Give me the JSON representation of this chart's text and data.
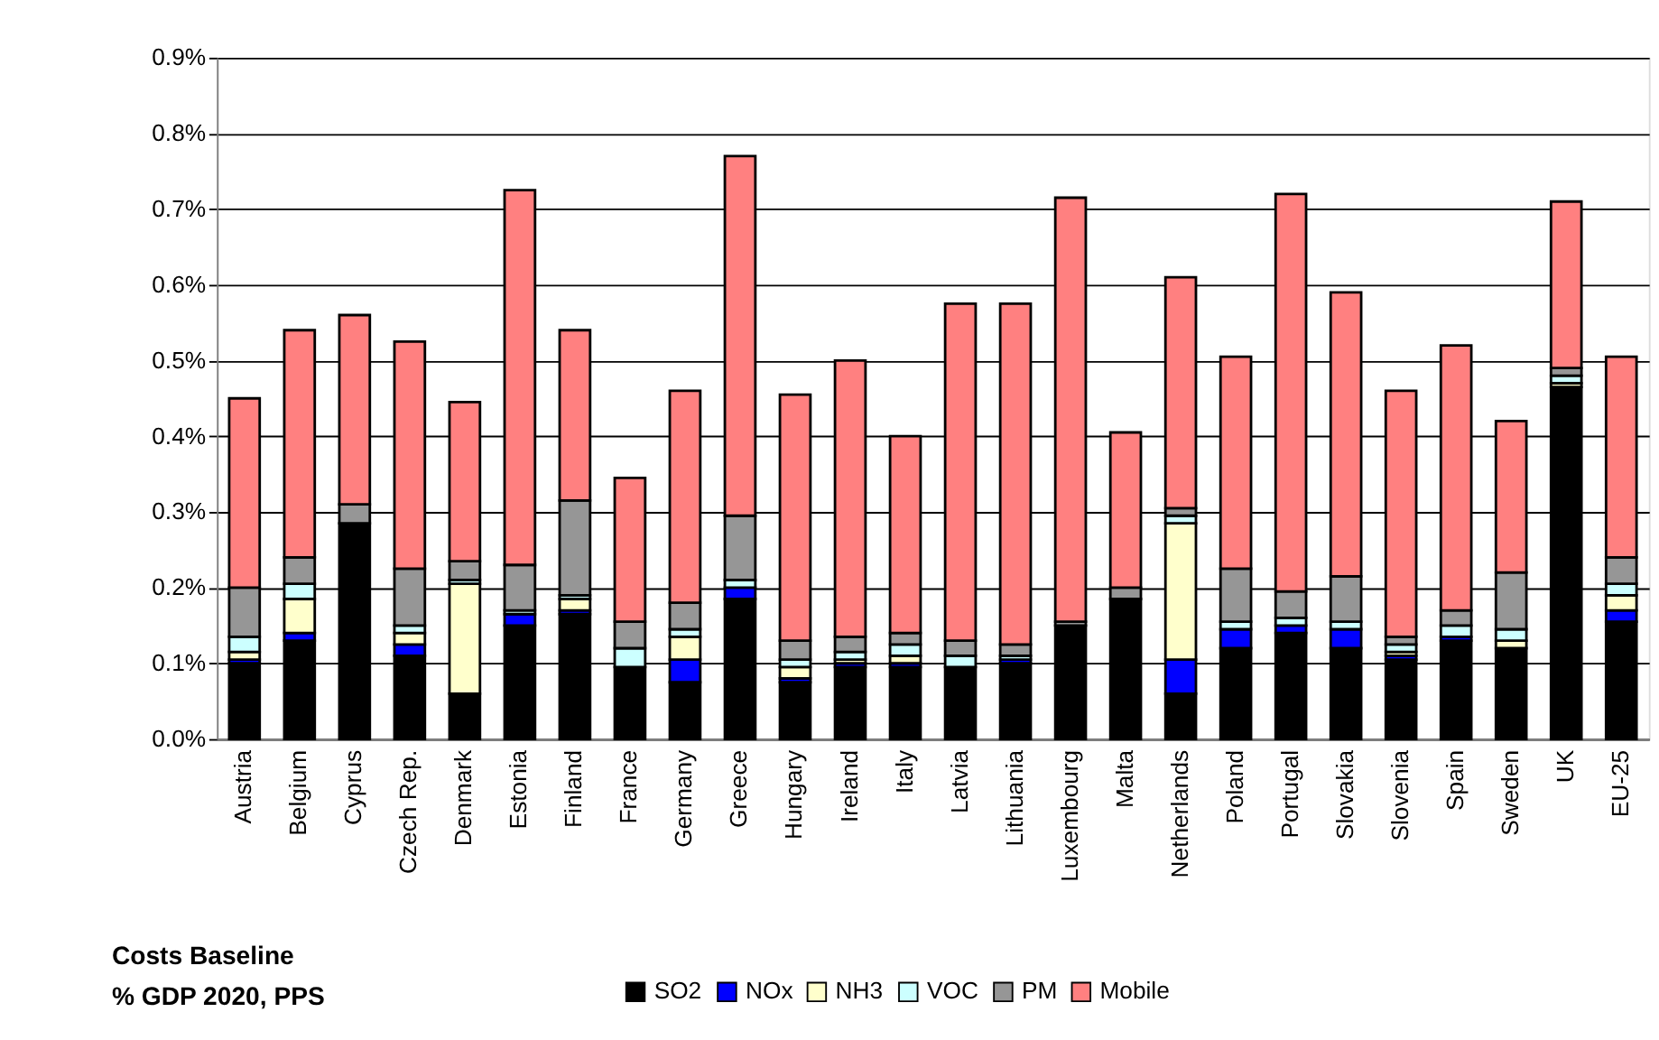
{
  "chart_data": {
    "type": "bar",
    "stacked": true,
    "categories": [
      "Austria",
      "Belgium",
      "Cyprus",
      "Czech Rep.",
      "Denmark",
      "Estonia",
      "Finland",
      "France",
      "Germany",
      "Greece",
      "Hungary",
      "Ireland",
      "Italy",
      "Latvia",
      "Lithuania",
      "Luxembourg",
      "Malta",
      "Netherlands",
      "Poland",
      "Portugal",
      "Slovakia",
      "Slovenia",
      "Spain",
      "Sweden",
      "UK",
      "EU-25"
    ],
    "series": [
      {
        "name": "SO2",
        "color": "#000000",
        "values": [
          0.1,
          0.13,
          0.285,
          0.11,
          0.06,
          0.15,
          0.165,
          0.095,
          0.075,
          0.185,
          0.075,
          0.095,
          0.095,
          0.095,
          0.1,
          0.15,
          0.185,
          0.06,
          0.12,
          0.14,
          0.12,
          0.105,
          0.13,
          0.12,
          0.465,
          0.155
        ]
      },
      {
        "name": "NOx",
        "color": "#0000ff",
        "values": [
          0.005,
          0.01,
          0,
          0.015,
          0,
          0.015,
          0.005,
          0,
          0.03,
          0.015,
          0.005,
          0.005,
          0.005,
          0,
          0.005,
          0,
          0,
          0.045,
          0.025,
          0.01,
          0.025,
          0.005,
          0.005,
          0,
          0,
          0.015
        ]
      },
      {
        "name": "NH3",
        "color": "#ffffcc",
        "values": [
          0.01,
          0.045,
          0,
          0.015,
          0.145,
          0,
          0.015,
          0,
          0.03,
          0,
          0.015,
          0.005,
          0.01,
          0,
          0,
          0,
          0,
          0.18,
          0,
          0,
          0,
          0.005,
          0,
          0.01,
          0.005,
          0.02
        ]
      },
      {
        "name": "VOC",
        "color": "#ccffff",
        "values": [
          0.02,
          0.02,
          0,
          0.01,
          0.005,
          0.005,
          0.005,
          0.025,
          0.01,
          0.01,
          0.01,
          0.01,
          0.015,
          0.015,
          0.005,
          0,
          0,
          0.01,
          0.01,
          0.01,
          0.01,
          0.01,
          0.015,
          0.015,
          0.01,
          0.015
        ]
      },
      {
        "name": "PM",
        "color": "#969696",
        "values": [
          0.065,
          0.035,
          0.025,
          0.075,
          0.025,
          0.06,
          0.125,
          0.035,
          0.035,
          0.085,
          0.025,
          0.02,
          0.015,
          0.02,
          0.015,
          0.005,
          0.015,
          0.01,
          0.07,
          0.035,
          0.06,
          0.01,
          0.02,
          0.075,
          0.01,
          0.035
        ]
      },
      {
        "name": "Mobile",
        "color": "#ff8080",
        "values": [
          0.25,
          0.3,
          0.25,
          0.3,
          0.21,
          0.495,
          0.225,
          0.19,
          0.28,
          0.475,
          0.325,
          0.365,
          0.26,
          0.445,
          0.45,
          0.56,
          0.205,
          0.305,
          0.28,
          0.525,
          0.375,
          0.325,
          0.35,
          0.2,
          0.22,
          0.265
        ]
      }
    ],
    "ylim": [
      0,
      0.9
    ],
    "yticks": [
      {
        "value": 0,
        "label": "0.0%"
      },
      {
        "value": 0.1,
        "label": "0.1%"
      },
      {
        "value": 0.2,
        "label": "0.2%"
      },
      {
        "value": 0.3,
        "label": "0.3%"
      },
      {
        "value": 0.4,
        "label": "0.4%"
      },
      {
        "value": 0.5,
        "label": "0.5%"
      },
      {
        "value": 0.6,
        "label": "0.6%"
      },
      {
        "value": 0.7,
        "label": "0.7%"
      },
      {
        "value": 0.8,
        "label": "0.8%"
      },
      {
        "value": 0.9,
        "label": "0.9%"
      }
    ],
    "grid": "y",
    "legend": "bottom",
    "annotations": [
      "Costs Baseline",
      "% GDP 2020, PPS"
    ]
  }
}
